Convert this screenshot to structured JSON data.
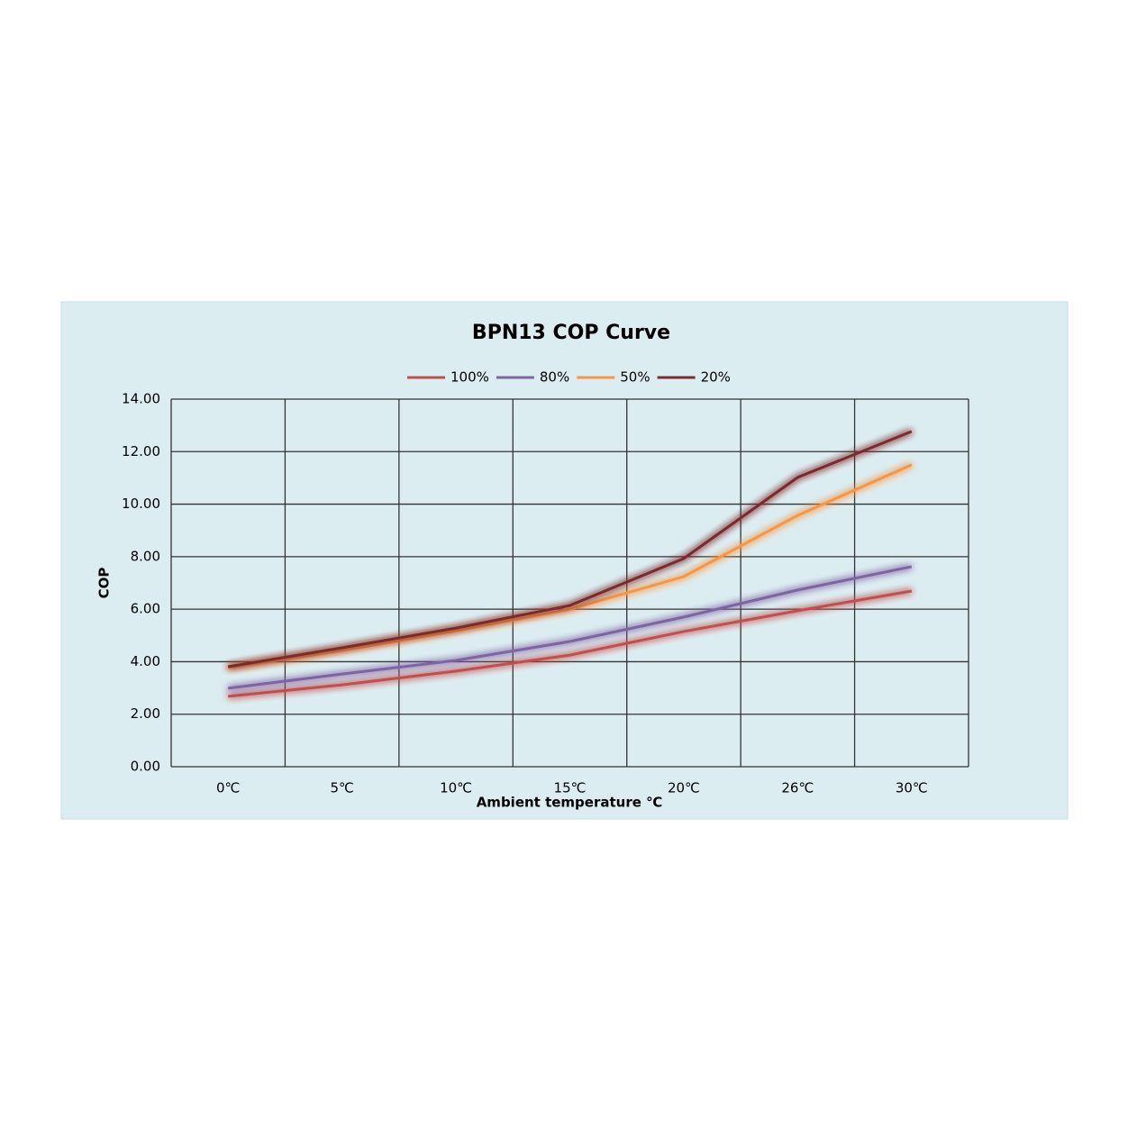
{
  "chart_data": {
    "type": "line",
    "title": "BPN13 COP Curve",
    "x_label": "Ambient temperature ℃",
    "y_label": "COP",
    "categories": [
      "0℃",
      "5℃",
      "10℃",
      "15℃",
      "20℃",
      "26℃",
      "30℃"
    ],
    "series": [
      {
        "name": "100%",
        "color": "#c0504d",
        "values": [
          2.68,
          3.12,
          3.64,
          4.25,
          5.15,
          5.94,
          6.69
        ]
      },
      {
        "name": "80%",
        "color": "#8064a2",
        "values": [
          2.99,
          3.53,
          4.05,
          4.77,
          5.7,
          6.73,
          7.62
        ]
      },
      {
        "name": "50%",
        "color": "#f79646",
        "values": [
          3.77,
          4.43,
          5.18,
          6.0,
          7.24,
          9.57,
          11.5
        ]
      },
      {
        "name": "20%",
        "color": "#7b2c2c",
        "values": [
          3.81,
          4.53,
          5.28,
          6.14,
          7.93,
          11.02,
          12.77
        ]
      }
    ],
    "ylim": [
      0,
      14
    ],
    "yticks": [
      {
        "value": 0,
        "label": "0.00"
      },
      {
        "value": 2,
        "label": "2.00"
      },
      {
        "value": 4,
        "label": "4.00"
      },
      {
        "value": 6,
        "label": "6.00"
      },
      {
        "value": 8,
        "label": "8.00"
      },
      {
        "value": 10,
        "label": "10.00"
      },
      {
        "value": 12,
        "label": "12.00"
      },
      {
        "value": 14,
        "label": "14.00"
      }
    ],
    "grid": true,
    "legend": "top"
  }
}
